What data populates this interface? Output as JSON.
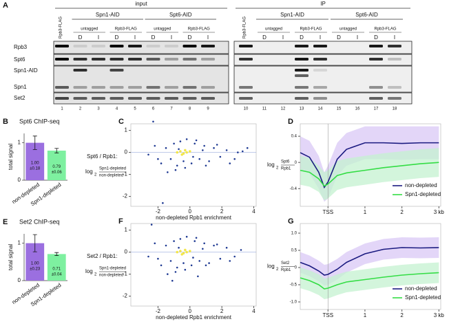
{
  "blot": {
    "panel": "A",
    "rows": [
      "Rpb3",
      "Spt6",
      "Spn1-AID",
      "Spn1",
      "Set2"
    ],
    "sections": [
      {
        "title": "input",
        "control_label": "Rpb3-FLAG",
        "lanes": [
          1,
          2,
          3,
          4,
          5,
          6,
          7,
          8,
          9
        ],
        "groups": [
          {
            "label": "Spn1-AID",
            "subgroups": [
              {
                "label": "untagged",
                "conditions": [
                  "D",
                  "I"
                ]
              },
              {
                "label": "Rpb3-FLAG",
                "conditions": [
                  "D",
                  "I"
                ]
              }
            ]
          },
          {
            "label": "Spt6-AID",
            "subgroups": [
              {
                "label": "untagged",
                "conditions": [
                  "D",
                  "I"
                ]
              },
              {
                "label": "Rpb3-FLAG",
                "conditions": [
                  "D",
                  "I"
                ]
              }
            ]
          }
        ]
      },
      {
        "title": "IP",
        "control_label": "Rpb3-FLAG",
        "lanes": [
          10,
          11,
          12,
          13,
          14,
          15,
          16,
          17,
          18
        ],
        "groups": [
          {
            "label": "Spn1-AID",
            "subgroups": [
              {
                "label": "untagged",
                "conditions": [
                  "D",
                  "I"
                ]
              },
              {
                "label": "Rpb3-FLAG",
                "conditions": [
                  "D",
                  "I"
                ]
              }
            ]
          },
          {
            "label": "Spt6-AID",
            "subgroups": [
              {
                "label": "untagged",
                "conditions": [
                  "D",
                  "I"
                ]
              },
              {
                "label": "Rpb3-FLAG",
                "conditions": [
                  "D",
                  "I"
                ]
              }
            ]
          }
        ]
      }
    ]
  },
  "chart_data": [
    {
      "type": "bar",
      "panel": "B",
      "title": "Spt6 ChIP-seq",
      "y_label": "total signal",
      "categories": [
        "non-depleted",
        "Spn1-depleted"
      ],
      "values": [
        1.0,
        0.79
      ],
      "value_labels": [
        "1.00",
        "0.79"
      ],
      "errors": [
        0.18,
        0.06
      ],
      "error_labels": [
        "±0.18",
        "±0.06"
      ],
      "colors": [
        "#9b6fe0",
        "#7ef0a0"
      ],
      "ylim": [
        0,
        1.25
      ],
      "yticks": [
        0,
        1
      ]
    },
    {
      "type": "scatter",
      "panel": "C",
      "y_label": "Spt6 / Rpb1:",
      "log_label": "log",
      "log_base": "2",
      "ratio_numerator": "Spn1-depleted",
      "ratio_denominator": "non-depleted",
      "x_label": "non-depleted Rpb1 enrichment",
      "xlim": [
        -3.7,
        4.15
      ],
      "ylim": [
        -2.45,
        1.3
      ],
      "xticks": [
        -2,
        0,
        2,
        4
      ],
      "yticks": [
        1,
        0,
        -1,
        -2
      ],
      "series": [
        {
          "color": "#1f3a93",
          "x": [
            -2.3,
            -1.7,
            -2.6,
            -2.2,
            -1.8,
            -1.5,
            -1.2,
            -1.0,
            -0.8,
            -0.6,
            -0.4,
            -0.2,
            0.1,
            0.3,
            0.6,
            0.9,
            1.2,
            1.5,
            1.9,
            2.3,
            2.8,
            3.3,
            3.6,
            -1.4,
            -0.9,
            -0.3,
            0.4,
            1.0,
            1.7,
            2.5,
            -2.0,
            -0.7,
            0.2,
            0.8,
            3.0
          ],
          "y": [
            1.4,
            -2.3,
            -0.1,
            0.3,
            -0.5,
            0.2,
            -0.3,
            0.4,
            -0.6,
            0.5,
            -0.4,
            0.6,
            -0.5,
            0.4,
            -0.3,
            0.3,
            -0.4,
            0.2,
            -0.2,
            0.1,
            -0.3,
            0.05,
            0.2,
            -0.9,
            -0.8,
            -0.7,
            0.55,
            -0.6,
            0.35,
            -0.5,
            -0.3,
            0.15,
            -0.2,
            0.1,
            0.0
          ]
        },
        {
          "color": "#f2e64a",
          "x": [
            -0.8,
            -0.6,
            -0.4,
            -0.2,
            0.0,
            -0.5,
            -0.3
          ],
          "y": [
            0.0,
            0.05,
            -0.05,
            0.0,
            0.05,
            -0.1,
            0.1
          ]
        }
      ]
    },
    {
      "type": "line",
      "panel": "D",
      "log_label": "log",
      "log_base": "2",
      "ratio_numerator": "Spt6",
      "ratio_denominator": "Rpb1",
      "x": [
        -0.75,
        -0.5,
        -0.25,
        -0.1,
        0,
        0.25,
        0.5,
        1,
        1.5,
        2,
        2.5,
        3
      ],
      "xlim": [
        -0.75,
        3.05
      ],
      "ylim": [
        -0.67,
        0.59
      ],
      "xticks": [
        {
          "value": 0,
          "label": "TSS"
        },
        1,
        2,
        {
          "value": 3,
          "label": "3 kb"
        }
      ],
      "yticks": [
        0.4,
        0,
        -0.4
      ],
      "legend": "lower-right",
      "series": [
        {
          "name": "non-depleted",
          "color": "#1a1a80",
          "band_color": "#d9c8f5",
          "values": [
            0.15,
            0.08,
            -0.15,
            -0.38,
            -0.3,
            0.05,
            0.2,
            0.3,
            0.3,
            0.29,
            0.3,
            0.3
          ],
          "upper": [
            0.4,
            0.33,
            0.1,
            -0.15,
            -0.05,
            0.3,
            0.45,
            0.55,
            0.55,
            0.55,
            0.55,
            0.55
          ],
          "lower": [
            -0.1,
            -0.17,
            -0.4,
            -0.6,
            -0.55,
            -0.2,
            -0.05,
            0.05,
            0.05,
            0.04,
            0.05,
            0.05
          ]
        },
        {
          "name": "Spn1-depleted",
          "color": "#33dd44",
          "band_color": "#c4f2d0",
          "values": [
            -0.12,
            -0.15,
            -0.25,
            -0.36,
            -0.33,
            -0.2,
            -0.16,
            -0.12,
            -0.08,
            -0.05,
            -0.02,
            0.0
          ],
          "upper": [
            0.1,
            0.07,
            -0.05,
            -0.15,
            -0.12,
            0.02,
            0.06,
            0.1,
            0.14,
            0.17,
            0.2,
            0.22
          ],
          "lower": [
            -0.34,
            -0.37,
            -0.45,
            -0.58,
            -0.55,
            -0.42,
            -0.38,
            -0.34,
            -0.3,
            -0.27,
            -0.24,
            -0.22
          ]
        }
      ]
    },
    {
      "type": "bar",
      "panel": "E",
      "title": "Set2 ChIP-seq",
      "y_label": "total signal",
      "categories": [
        "non-depleted",
        "Spn1-depleted"
      ],
      "values": [
        1.0,
        0.71
      ],
      "value_labels": [
        "1.00",
        "0.71"
      ],
      "errors": [
        0.23,
        0.04
      ],
      "error_labels": [
        "±0.23",
        "±0.04"
      ],
      "colors": [
        "#9b6fe0",
        "#7ef0a0"
      ],
      "ylim": [
        0,
        1.25
      ],
      "yticks": [
        0,
        1
      ]
    },
    {
      "type": "scatter",
      "panel": "F",
      "y_label": "Set2 / Rpb1:",
      "log_label": "log",
      "log_base": "2",
      "ratio_numerator": "Spn1-depleted",
      "ratio_denominator": "non-depleted",
      "x_label": "non-depleted Rpb1 enrichment",
      "xlim": [
        -3.7,
        4.15
      ],
      "ylim": [
        -2.45,
        1.3
      ],
      "xticks": [
        -2,
        0,
        2,
        4
      ],
      "yticks": [
        1,
        0,
        -1,
        -2
      ],
      "series": [
        {
          "color": "#1f3a93",
          "x": [
            -2.4,
            -2.6,
            -2.2,
            -1.8,
            -1.5,
            -1.2,
            -1.0,
            -0.8,
            -0.6,
            -0.4,
            -0.2,
            0.1,
            0.3,
            0.6,
            0.9,
            1.2,
            1.5,
            1.9,
            2.3,
            2.8,
            3.2,
            -1.4,
            -0.9,
            -0.3,
            0.4,
            1.0,
            1.7,
            2.5,
            -2.0,
            -0.7,
            0.2,
            0.8,
            -1.1,
            0.5
          ],
          "y": [
            1.25,
            -0.2,
            0.4,
            -0.6,
            0.3,
            -0.4,
            0.5,
            -0.7,
            0.6,
            -0.5,
            0.7,
            -0.6,
            0.5,
            -0.4,
            0.4,
            -0.5,
            0.3,
            -0.3,
            0.2,
            -0.2,
            0.1,
            -1.0,
            -0.9,
            -0.8,
            0.65,
            -0.6,
            0.35,
            -0.4,
            -0.3,
            0.2,
            -0.25,
            0.15,
            -1.3,
            -1.1
          ]
        },
        {
          "color": "#f2e64a",
          "x": [
            -0.8,
            -0.6,
            -0.4,
            -0.2,
            0.0,
            -0.5,
            -0.3
          ],
          "y": [
            0.0,
            0.05,
            -0.05,
            0.0,
            0.05,
            -0.1,
            0.1
          ]
        }
      ]
    },
    {
      "type": "line",
      "panel": "G",
      "log_label": "log",
      "log_base": "2",
      "ratio_numerator": "Set2",
      "ratio_denominator": "Rpb1",
      "x": [
        -0.75,
        -0.5,
        -0.25,
        -0.1,
        0,
        0.25,
        0.5,
        1,
        1.5,
        2,
        2.5,
        3
      ],
      "xlim": [
        -0.75,
        3.05
      ],
      "ylim": [
        -1.22,
        1.28
      ],
      "xticks": [
        {
          "value": 0,
          "label": "TSS"
        },
        1,
        2,
        {
          "value": 3,
          "label": "3 kb"
        }
      ],
      "yticks": [
        {
          "value": 1.0,
          "label": "1.0"
        },
        0.5,
        0,
        -0.5,
        {
          "value": -1.0,
          "label": "-1.0"
        }
      ],
      "legend": "lower-right",
      "series": [
        {
          "name": "non-depleted",
          "color": "#1a1a80",
          "band_color": "#d9c8f5",
          "values": [
            0.15,
            0.05,
            -0.1,
            -0.22,
            -0.2,
            -0.05,
            0.15,
            0.4,
            0.53,
            0.58,
            0.57,
            0.58
          ],
          "upper": [
            0.45,
            0.35,
            0.2,
            0.08,
            0.1,
            0.25,
            0.45,
            0.7,
            0.83,
            0.88,
            0.87,
            0.88
          ],
          "lower": [
            -0.15,
            -0.25,
            -0.4,
            -0.52,
            -0.5,
            -0.35,
            -0.15,
            0.1,
            0.23,
            0.28,
            0.27,
            0.28
          ]
        },
        {
          "name": "Spn1-depleted",
          "color": "#33dd44",
          "band_color": "#c4f2d0",
          "values": [
            -0.3,
            -0.38,
            -0.5,
            -0.62,
            -0.6,
            -0.5,
            -0.42,
            -0.35,
            -0.28,
            -0.22,
            -0.18,
            -0.15
          ],
          "upper": [
            0.0,
            -0.08,
            -0.2,
            -0.32,
            -0.3,
            -0.2,
            -0.12,
            -0.05,
            0.02,
            0.08,
            0.12,
            0.15
          ],
          "lower": [
            -0.6,
            -0.68,
            -0.8,
            -0.92,
            -0.9,
            -0.8,
            -0.72,
            -0.65,
            -0.58,
            -0.52,
            -0.48,
            -0.45
          ]
        }
      ]
    }
  ]
}
